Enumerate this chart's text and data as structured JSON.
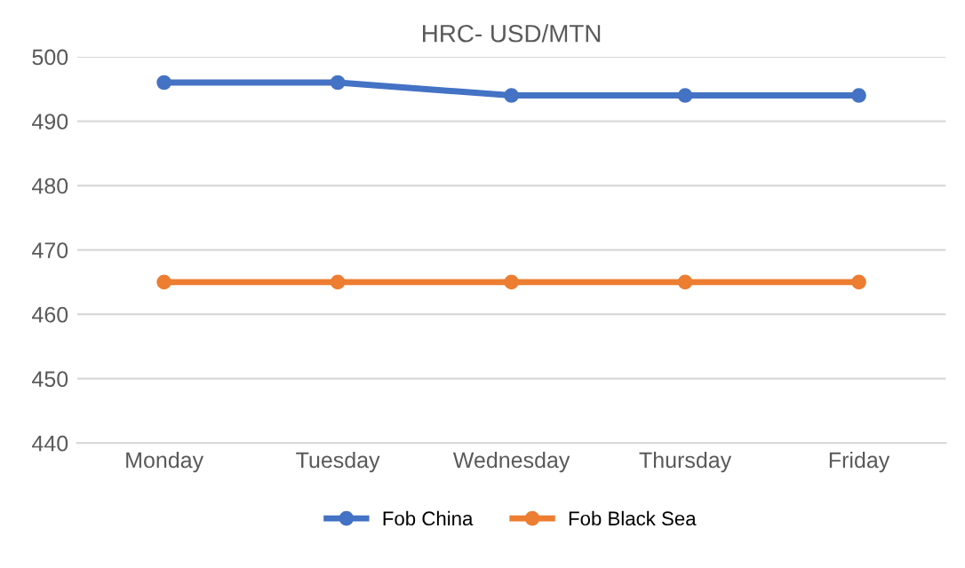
{
  "chart_data": {
    "type": "line",
    "title": "HRC- USD/MTN",
    "categories": [
      "Monday",
      "Tuesday",
      "Wednesday",
      "Thursday",
      "Friday"
    ],
    "series": [
      {
        "name": "Fob China",
        "color": "#4472c4",
        "values": [
          496,
          496,
          494,
          494,
          494
        ]
      },
      {
        "name": "Fob Black Sea",
        "color": "#ed7d31",
        "values": [
          465,
          465,
          465,
          465,
          465
        ]
      }
    ],
    "ylim": [
      440,
      500
    ],
    "yticks": [
      440,
      450,
      460,
      470,
      480,
      490,
      500
    ],
    "grid": "y",
    "legend": "bottom",
    "marker": "circle",
    "line_style": "solid"
  }
}
